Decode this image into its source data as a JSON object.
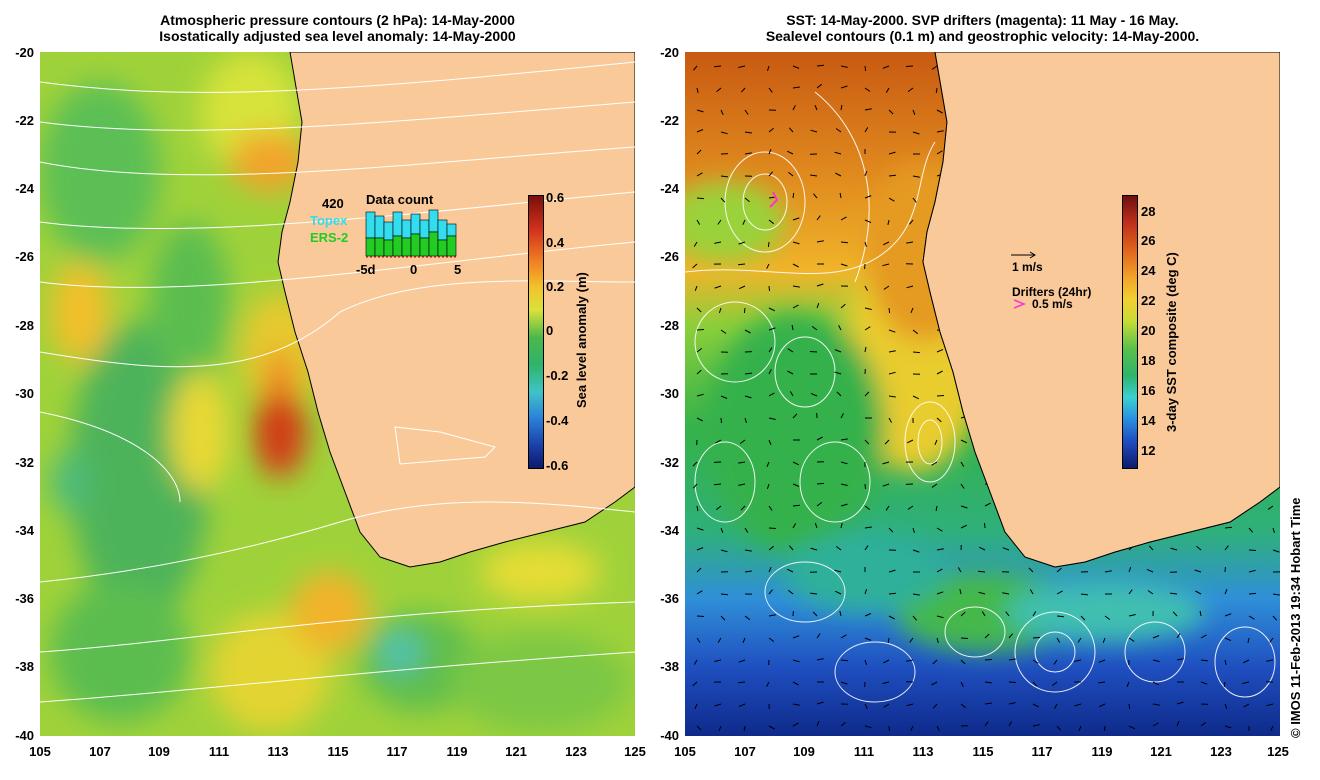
{
  "left_panel": {
    "title_line1": "Atmospheric pressure contours (2 hPa): 14-May-2000",
    "title_line2": "Isostatically adjusted sea level anomaly: 14-May-2000",
    "colorbar": {
      "label": "Sea level anomaly (m)",
      "ticks": [
        "0.6",
        "0.4",
        "0.2",
        "0",
        "-0.2",
        "-0.4",
        "-0.6"
      ]
    },
    "inset": {
      "count": "420",
      "title": "Data count",
      "topex_label": "Topex",
      "ers_label": "ERS-2",
      "axis_ticks": [
        "-5d",
        "0",
        "5"
      ]
    }
  },
  "right_panel": {
    "title_line1": "SST: 14-May-2000. SVP drifters (magenta): 11 May - 16 May.",
    "title_line2": "Sealevel contours (0.1 m) and geostrophic velocity: 14-May-2000.",
    "colorbar": {
      "label": "3-day SST composite (deg C)",
      "ticks": [
        "28",
        "26",
        "24",
        "22",
        "20",
        "18",
        "16",
        "14",
        "12"
      ]
    },
    "velocity_legend": "1 m/s",
    "drifters_legend_title": "Drifters (24hr)",
    "drifters_legend_speed": "0.5 m/s"
  },
  "axes": {
    "y_ticks": [
      "-20",
      "-22",
      "-24",
      "-26",
      "-28",
      "-30",
      "-32",
      "-34",
      "-36",
      "-38",
      "-40"
    ],
    "x_ticks": [
      "105",
      "107",
      "109",
      "111",
      "113",
      "115",
      "117",
      "119",
      "121",
      "123",
      "125"
    ]
  },
  "footer_credit": "© IMOS 11-Feb-2013 19:34 Hobart Time",
  "colors": {
    "land": "#f9c99a",
    "coast": "#000000",
    "contour": "#ffffff",
    "drifter": "#ff33cc"
  }
}
